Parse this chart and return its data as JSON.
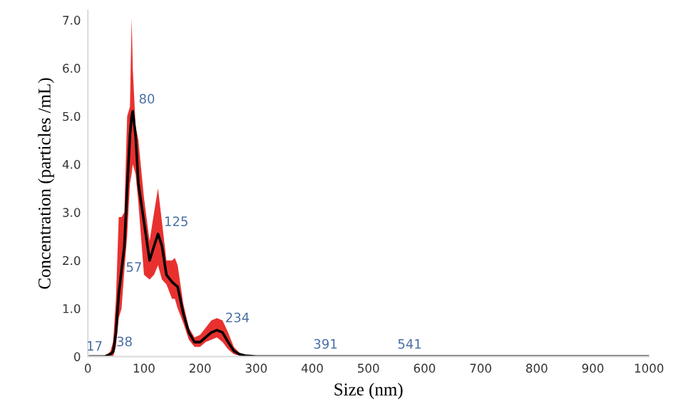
{
  "chart_data": {
    "type": "line",
    "xlabel": "Size (nm)",
    "ylabel": "Concentration (particles /mL)",
    "x": [
      0,
      30,
      40,
      45,
      50,
      55,
      60,
      65,
      70,
      75,
      78,
      80,
      85,
      90,
      100,
      110,
      118,
      125,
      132,
      140,
      150,
      155,
      160,
      170,
      180,
      190,
      200,
      210,
      220,
      230,
      240,
      250,
      260,
      270,
      280,
      300,
      400,
      1000
    ],
    "series": [
      {
        "color": "#000000",
        "values": [
          0,
          0,
          0.05,
          0.1,
          0.5,
          1.3,
          1.8,
          2.3,
          3.5,
          4.6,
          5.0,
          5.1,
          4.6,
          3.6,
          2.8,
          2.0,
          2.3,
          2.55,
          2.3,
          1.7,
          1.55,
          1.5,
          1.45,
          0.9,
          0.5,
          0.3,
          0.3,
          0.4,
          0.5,
          0.55,
          0.5,
          0.3,
          0.12,
          0.05,
          0.02,
          0,
          0,
          0
        ],
        "upper": [
          0,
          0,
          0.1,
          0.3,
          1.2,
          2.9,
          2.9,
          3.0,
          5.0,
          5.2,
          7.05,
          6.0,
          4.8,
          4.5,
          3.3,
          2.4,
          3.0,
          3.5,
          2.8,
          2.0,
          2.0,
          2.05,
          1.9,
          1.1,
          0.6,
          0.4,
          0.45,
          0.6,
          0.75,
          0.8,
          0.75,
          0.5,
          0.2,
          0.08,
          0.03,
          0,
          0,
          0
        ],
        "lower": [
          0,
          0,
          0,
          0,
          0.2,
          0.8,
          1.0,
          1.8,
          2.5,
          3.6,
          3.8,
          4.0,
          3.8,
          3.2,
          1.7,
          1.6,
          1.7,
          1.9,
          1.6,
          1.5,
          1.2,
          1.2,
          1.0,
          0.7,
          0.35,
          0.2,
          0.2,
          0.3,
          0.35,
          0.4,
          0.3,
          0.15,
          0.05,
          0.02,
          0,
          0,
          0,
          0
        ]
      }
    ],
    "annotations": [
      {
        "text": "17",
        "x": 30,
        "y": 0
      },
      {
        "text": "38",
        "x": 40,
        "y": 0.05
      },
      {
        "text": "57",
        "x": 57,
        "y": 1.6
      },
      {
        "text": "80",
        "x": 80,
        "y": 5.1
      },
      {
        "text": "125",
        "x": 125,
        "y": 2.55
      },
      {
        "text": "234",
        "x": 234,
        "y": 0.55
      },
      {
        "text": "391",
        "x": 391,
        "y": 0
      },
      {
        "text": "541",
        "x": 541,
        "y": 0
      }
    ],
    "xlim": [
      0,
      1000
    ],
    "ylim": [
      0,
      7.2
    ],
    "xticks": [
      0,
      100,
      200,
      300,
      400,
      500,
      600,
      700,
      800,
      900,
      1000
    ],
    "yticks": [
      0,
      {
        "value": 1,
        "label": "1.0"
      },
      {
        "value": 2,
        "label": "2.0"
      },
      {
        "value": 3,
        "label": "3.0"
      },
      {
        "value": 4,
        "label": "4.0"
      },
      {
        "value": 5,
        "label": "5.0"
      },
      {
        "value": 6,
        "label": "6.0"
      },
      {
        "value": 7,
        "label": "7.0"
      }
    ],
    "grid": false,
    "legend": false,
    "marker": "none",
    "line_style": "solid"
  }
}
